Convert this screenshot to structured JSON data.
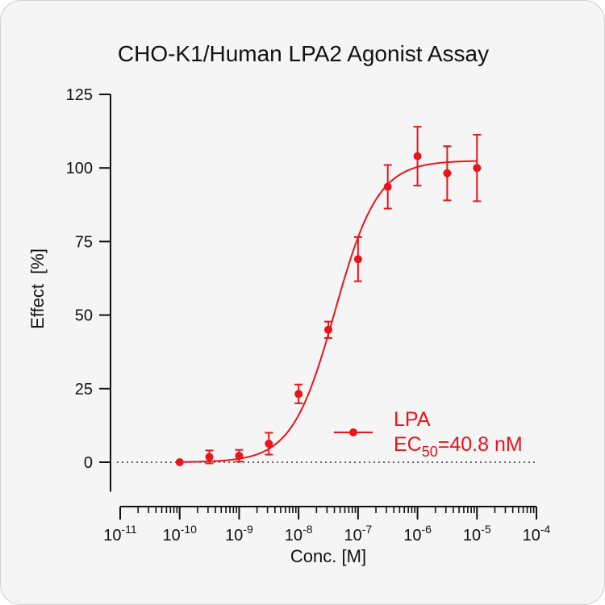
{
  "chart_data": {
    "type": "scatter",
    "title": "CHO-K1/Human LPA2 Agonist Assay",
    "xlabel": "Conc. [M]",
    "ylabel": "Effect  [%]",
    "x_scale": "log",
    "xlim": [
      1e-11,
      0.0001
    ],
    "ylim": [
      -10,
      125
    ],
    "y_ticks": [
      0,
      25,
      50,
      75,
      100,
      125
    ],
    "x_ticks": [
      {
        "base": "10",
        "exp": "-11",
        "value": 1e-11
      },
      {
        "base": "10",
        "exp": "-10",
        "value": 1e-10
      },
      {
        "base": "10",
        "exp": "-9",
        "value": 1e-09
      },
      {
        "base": "10",
        "exp": "-8",
        "value": 1e-08
      },
      {
        "base": "10",
        "exp": "-7",
        "value": 1e-07
      },
      {
        "base": "10",
        "exp": "-6",
        "value": 1e-06
      },
      {
        "base": "10",
        "exp": "-5",
        "value": 1e-05
      },
      {
        "base": "10",
        "exp": "-4",
        "value": 0.0001
      }
    ],
    "baseline_y": 0,
    "series": [
      {
        "name": "LPA",
        "color": "#e8151b",
        "ec50_prefix": "EC",
        "ec50_sub": "50",
        "ec50_value": "=40.8 nM",
        "fit": {
          "bottom": 0,
          "top": 102.5,
          "ec50": 4.08e-08,
          "hill": 1.2
        },
        "points": [
          {
            "x": 1e-10,
            "y": 0,
            "err": 0
          },
          {
            "x": 3.16e-10,
            "y": 1.8,
            "err": 2.2
          },
          {
            "x": 1e-09,
            "y": 2.2,
            "err": 2.0
          },
          {
            "x": 3.16e-09,
            "y": 6.3,
            "err": 3.7
          },
          {
            "x": 1e-08,
            "y": 23.2,
            "err": 3.2
          },
          {
            "x": 3.16e-08,
            "y": 45.0,
            "err": 2.8
          },
          {
            "x": 1e-07,
            "y": 69.0,
            "err": 7.5
          },
          {
            "x": 3.16e-07,
            "y": 93.6,
            "err": 7.4
          },
          {
            "x": 1e-06,
            "y": 104.0,
            "err": 10.0
          },
          {
            "x": 3.16e-06,
            "y": 98.2,
            "err": 9.2
          },
          {
            "x": 1e-05,
            "y": 100.0,
            "err": 11.3
          }
        ]
      }
    ]
  }
}
